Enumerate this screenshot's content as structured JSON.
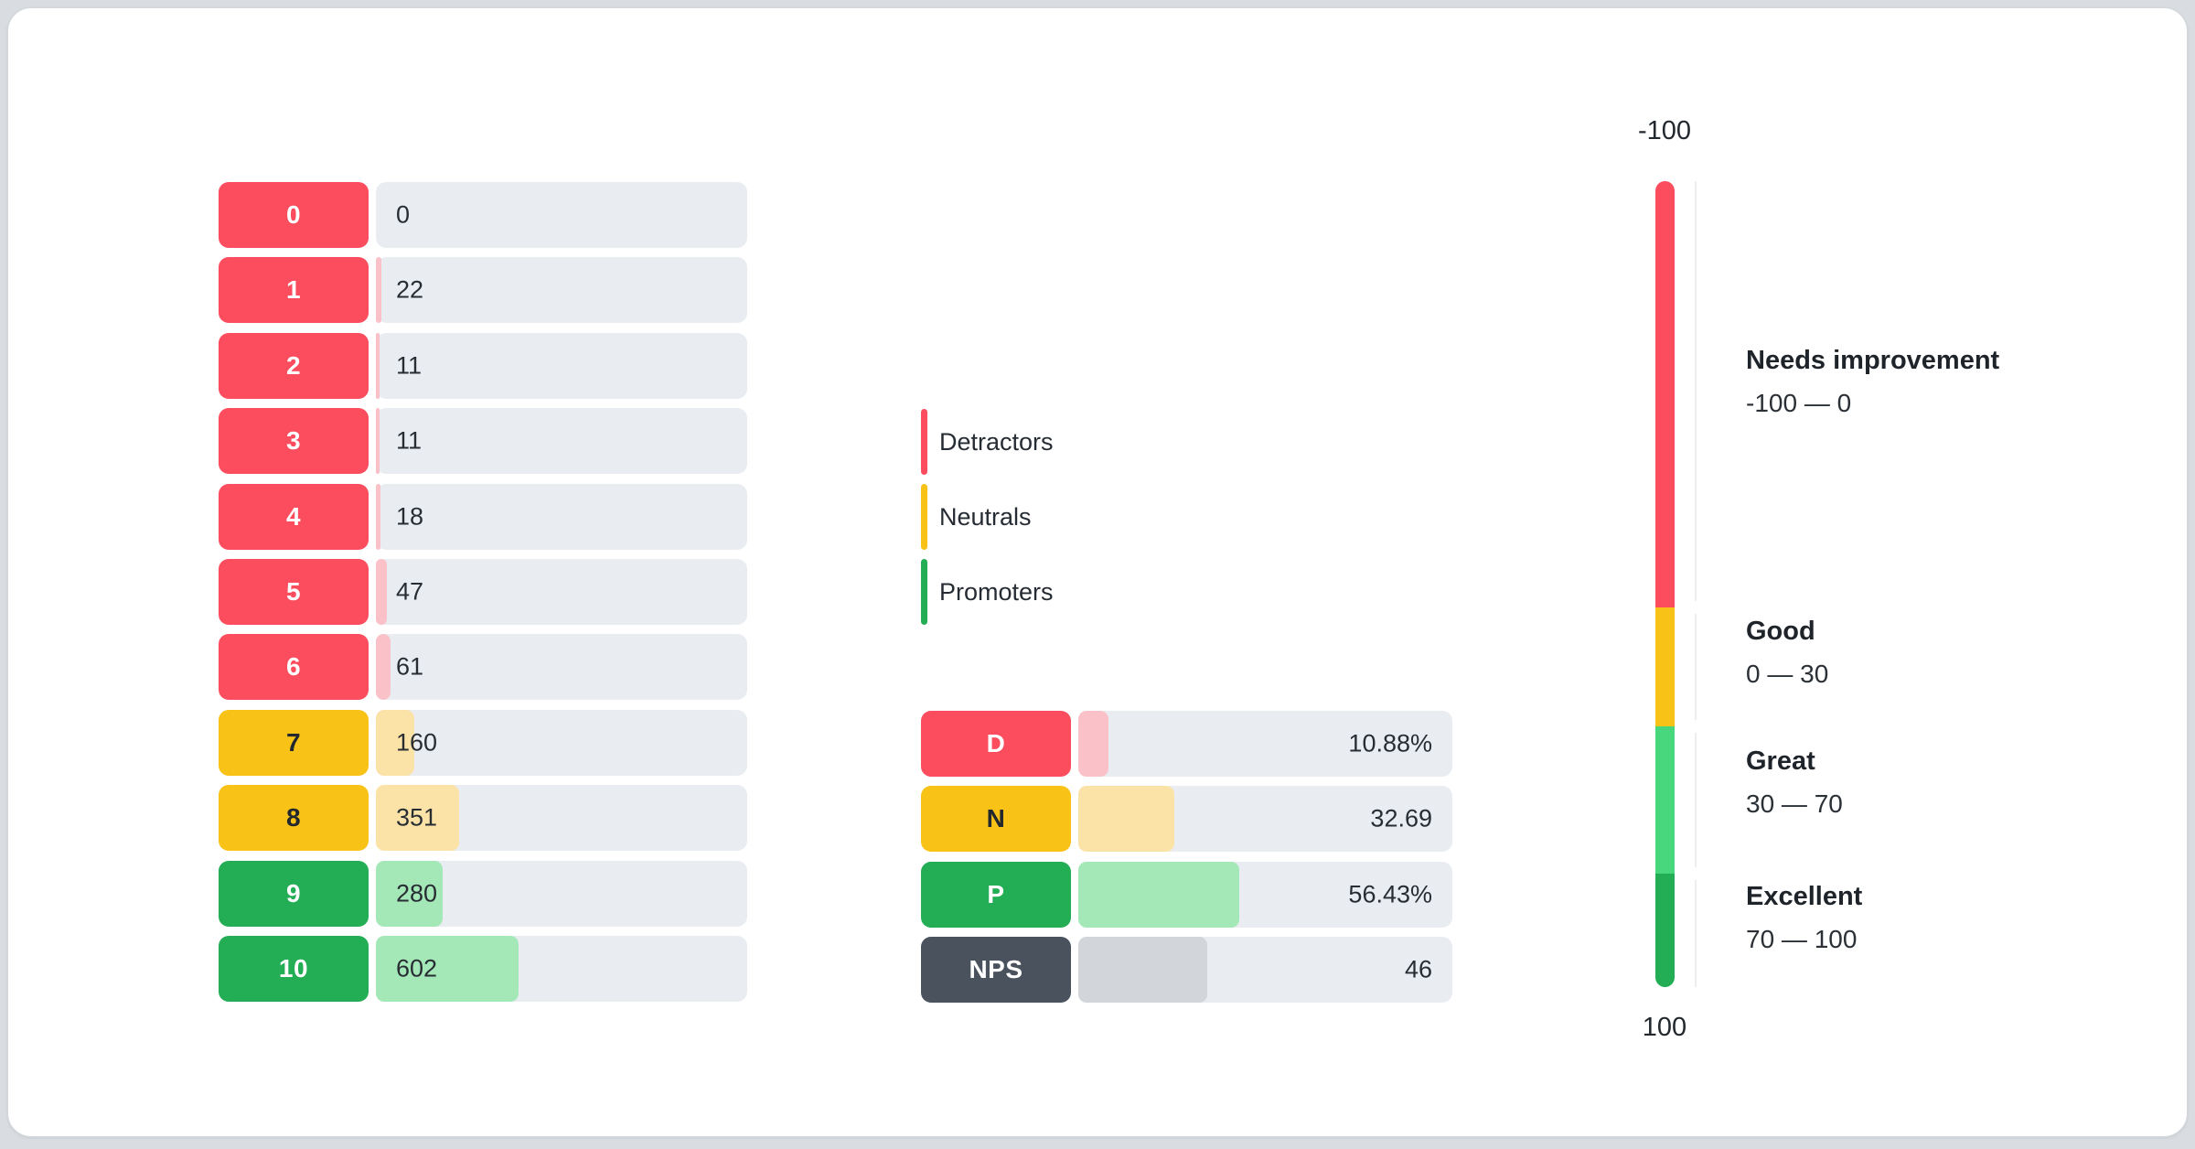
{
  "colors": {
    "detractor": "#fb4d5d",
    "detractor_light": "#fac2c8",
    "neutral": "#f9c216",
    "neutral_light": "#fbe3a8",
    "promoter": "#23ad55",
    "promoter_light": "#a5e8b8",
    "gauge_great_green": "#48d77d",
    "nps_badge": "#49525d",
    "nps_fill": "#d2d6da",
    "track": "#e9edf1",
    "page_background": "#d9dde1",
    "card_background": "#ffffff"
  },
  "distribution": {
    "rows": [
      {
        "score": "0",
        "count": "0",
        "group": "detractor",
        "fill_pct": 0
      },
      {
        "score": "1",
        "count": "22",
        "group": "detractor",
        "fill_pct": 1.41
      },
      {
        "score": "2",
        "count": "11",
        "group": "detractor",
        "fill_pct": 0.9
      },
      {
        "score": "3",
        "count": "11",
        "group": "detractor",
        "fill_pct": 0.9
      },
      {
        "score": "4",
        "count": "18",
        "group": "detractor",
        "fill_pct": 1.15
      },
      {
        "score": "5",
        "count": "47",
        "group": "detractor",
        "fill_pct": 3.01
      },
      {
        "score": "6",
        "count": "61",
        "group": "detractor",
        "fill_pct": 3.9
      },
      {
        "score": "7",
        "count": "160",
        "group": "neutral",
        "fill_pct": 10.24
      },
      {
        "score": "8",
        "count": "351",
        "group": "neutral",
        "fill_pct": 22.46
      },
      {
        "score": "9",
        "count": "280",
        "group": "promoter",
        "fill_pct": 17.91
      },
      {
        "score": "10",
        "count": "602",
        "group": "promoter",
        "fill_pct": 38.52
      }
    ]
  },
  "legend": {
    "items": [
      {
        "label": "Detractors",
        "group": "detractor"
      },
      {
        "label": "Neutrals",
        "group": "neutral"
      },
      {
        "label": "Promoters",
        "group": "promoter"
      }
    ]
  },
  "summary": {
    "rows": [
      {
        "label": "D",
        "value": "10.88%",
        "group": "detractor",
        "fill_pct": 8.0
      },
      {
        "label": "N",
        "value": "32.69",
        "group": "neutral",
        "fill_pct": 25.6
      },
      {
        "label": "P",
        "value": "56.43%",
        "group": "promoter",
        "fill_pct": 43.1
      },
      {
        "label": "NPS",
        "value": "46",
        "group": "nps",
        "fill_pct": 34.4
      }
    ]
  },
  "gauge": {
    "top_label": "-100",
    "bottom_label": "100",
    "segments": [
      {
        "name": "Needs improvement",
        "range": "-100 — 0",
        "color": "#fb4d5d",
        "height_pct": 52.9
      },
      {
        "name": "Good",
        "range": "0 — 30",
        "color": "#f9c216",
        "height_pct": 14.8
      },
      {
        "name": "Great",
        "range": "30 — 70",
        "color": "#48d77d",
        "height_pct": 18.2
      },
      {
        "name": "Excellent",
        "range": "70 — 100",
        "color": "#23ad55",
        "height_pct": 14.1
      }
    ]
  },
  "chart_data": [
    {
      "type": "bar",
      "orientation": "horizontal",
      "categories": [
        "0",
        "1",
        "2",
        "3",
        "4",
        "5",
        "6",
        "7",
        "8",
        "9",
        "10"
      ],
      "values": [
        0,
        22,
        11,
        11,
        18,
        47,
        61,
        160,
        351,
        280,
        602
      ],
      "series_groups": [
        "detractor",
        "detractor",
        "detractor",
        "detractor",
        "detractor",
        "detractor",
        "detractor",
        "neutral",
        "neutral",
        "promoter",
        "promoter"
      ],
      "title": "",
      "xlabel": "",
      "ylabel": ""
    },
    {
      "type": "bar",
      "orientation": "horizontal",
      "categories": [
        "D",
        "N",
        "P",
        "NPS"
      ],
      "values": [
        10.88,
        32.69,
        56.43,
        46
      ],
      "value_labels": [
        "10.88%",
        "32.69",
        "56.43%",
        "46"
      ],
      "title": "",
      "xlabel": "",
      "ylabel": ""
    },
    {
      "type": "gauge",
      "min": -100,
      "max": 100,
      "zones": [
        {
          "label": "Needs improvement",
          "from": -100,
          "to": 0
        },
        {
          "label": "Good",
          "from": 0,
          "to": 30
        },
        {
          "label": "Great",
          "from": 30,
          "to": 70
        },
        {
          "label": "Excellent",
          "from": 70,
          "to": 100
        }
      ]
    }
  ]
}
